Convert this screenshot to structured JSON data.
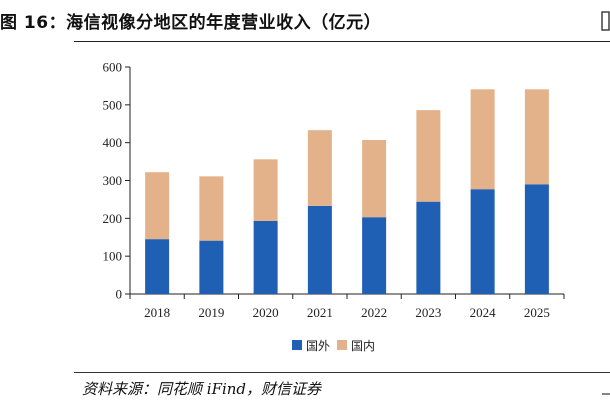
{
  "figure": {
    "title": "图 16：海信视像分地区的年度营业收入（亿元）",
    "source": "资料来源：同花顺 iFind，财信证券"
  },
  "chart_data": {
    "type": "bar",
    "stacked": true,
    "categories": [
      "2018",
      "2019",
      "2020",
      "2021",
      "2022",
      "2023",
      "2024",
      "2025"
    ],
    "series": [
      {
        "name": "国外",
        "color": "#1f5fb4",
        "values": [
          145,
          141,
          193,
          233,
          203,
          244,
          277,
          290
        ]
      },
      {
        "name": "国内",
        "color": "#e4b28a",
        "values": [
          177,
          170,
          163,
          200,
          204,
          242,
          264,
          251
        ]
      }
    ],
    "ylim": [
      0,
      600
    ],
    "yticks": [
      0,
      100,
      200,
      300,
      400,
      500,
      600
    ],
    "grid": false,
    "legend_position": "bottom-center"
  }
}
